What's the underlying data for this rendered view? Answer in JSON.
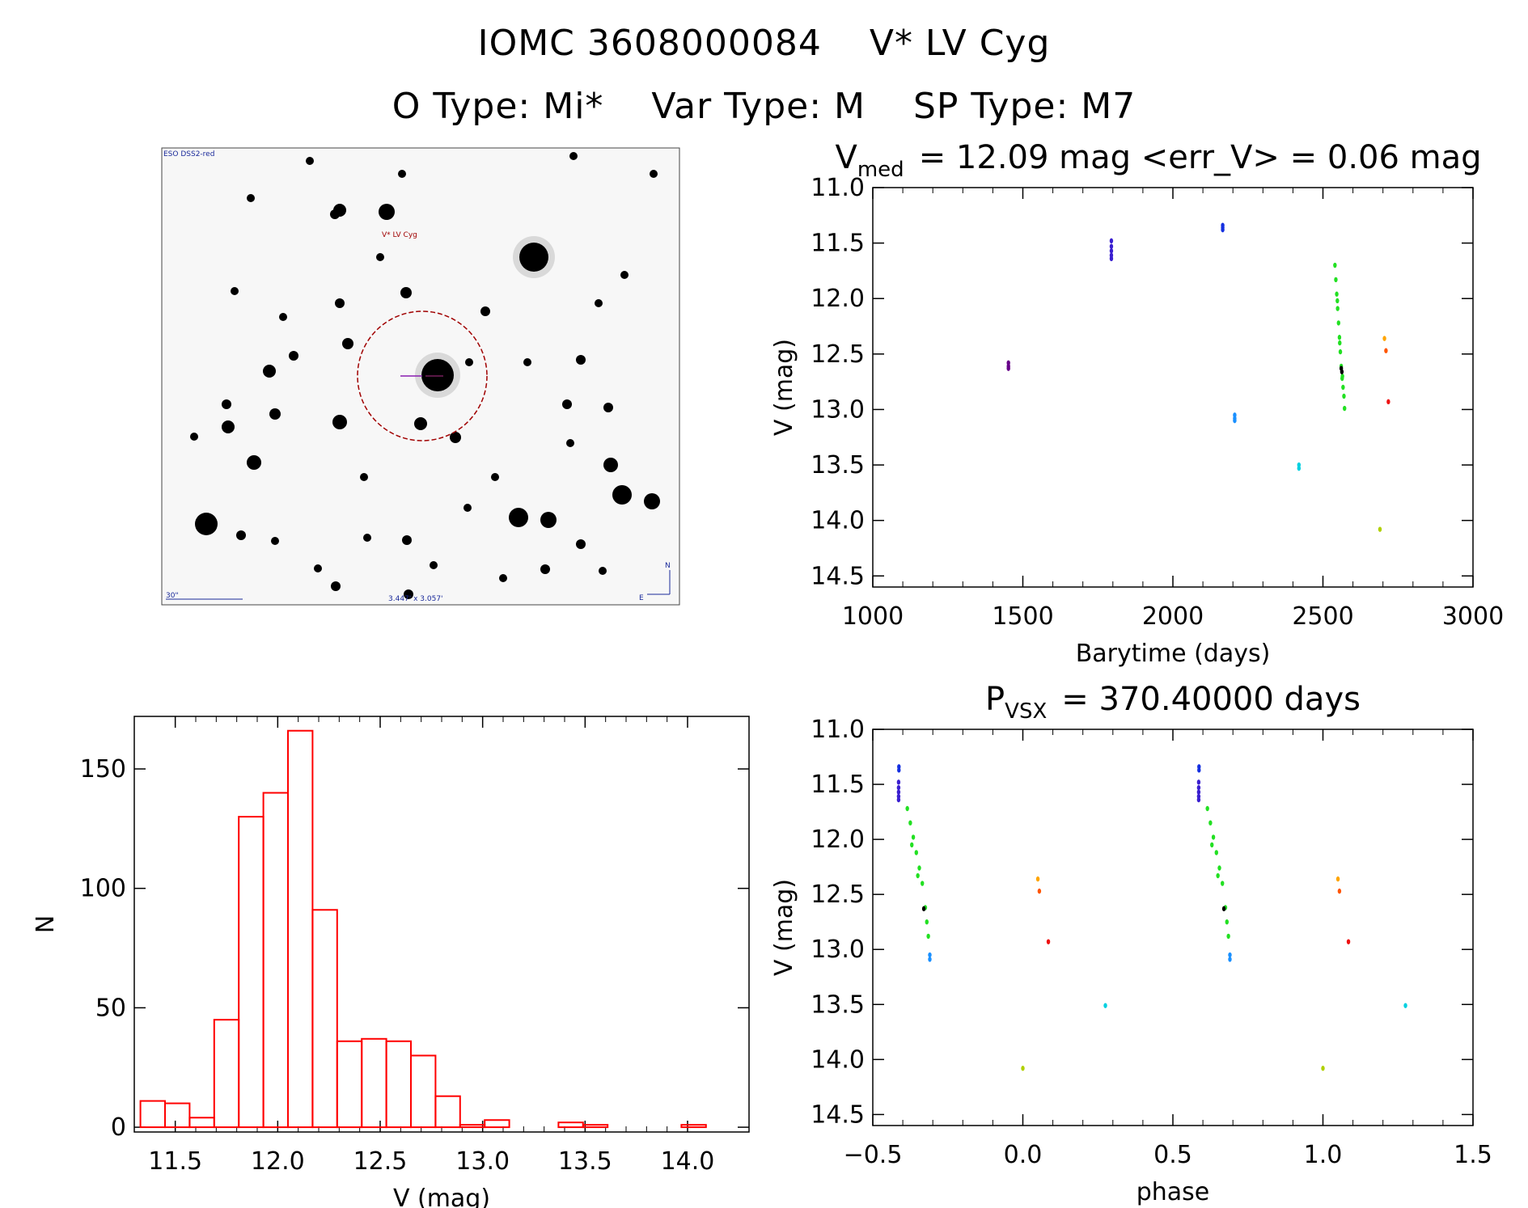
{
  "header": {
    "object_id": "IOMC 3608000084",
    "object_name": "V* LV Cyg",
    "o_type": "O Type: Mi*",
    "var_type": "Var Type: M",
    "sp_type": "SP Type: M7"
  },
  "finder_chart": {
    "survey_label": "ESO DSS2-red",
    "target_label": "V* LV Cyg",
    "scale_label": "30\"",
    "fov_label": "3.447' x 3.057'",
    "north_label": "N",
    "east_label": "E"
  },
  "colors": {
    "histogram": "#ff0000",
    "circle": "#a00000"
  },
  "chart_data": [
    {
      "id": "lightcurve",
      "type": "scatter",
      "title_main": "V",
      "title_sub": "med",
      "title_rest": "= 12.09 mag <err_V> = 0.06 mag",
      "xlabel": "Barytime (days)",
      "ylabel": "V (mag)",
      "xlim": [
        1000,
        3000
      ],
      "ylim": [
        14.6,
        11.0
      ],
      "xticks": [
        1000,
        1500,
        2000,
        2500,
        3000
      ],
      "xtick_labels": [
        "1000",
        "1500",
        "2000",
        "2500",
        "3000"
      ],
      "yticks": [
        11.0,
        11.5,
        12.0,
        12.5,
        13.0,
        13.5,
        14.0,
        14.5
      ],
      "ytick_labels": [
        "11.0",
        "11.5",
        "12.0",
        "12.5",
        "13.0",
        "13.5",
        "14.0",
        "14.5"
      ],
      "groups": [
        {
          "name": "s1",
          "color": "#660088",
          "x": [
            1452,
            1452,
            1452
          ],
          "y": [
            12.58,
            12.61,
            12.63
          ]
        },
        {
          "name": "s2",
          "color": "#3a1fd0",
          "x": [
            1795,
            1795,
            1795,
            1795,
            1795
          ],
          "y": [
            11.48,
            11.53,
            11.57,
            11.61,
            11.64
          ]
        },
        {
          "name": "s3",
          "color": "#1530e0",
          "x": [
            2166,
            2166,
            2166
          ],
          "y": [
            11.34,
            11.36,
            11.38
          ]
        },
        {
          "name": "s4",
          "color": "#1a90ff",
          "x": [
            2206,
            2206,
            2206
          ],
          "y": [
            13.05,
            13.08,
            13.1
          ]
        },
        {
          "name": "s5",
          "color": "#00d0e0",
          "x": [
            2420,
            2420
          ],
          "y": [
            13.5,
            13.53
          ]
        },
        {
          "name": "s6_green",
          "color": "#22e022",
          "x": [
            2540,
            2543,
            2546,
            2549,
            2552,
            2555,
            2558,
            2561,
            2564,
            2567,
            2570,
            2572,
            2548,
            2556,
            2565
          ],
          "y": [
            11.7,
            11.83,
            11.96,
            12.09,
            12.22,
            12.35,
            12.48,
            12.61,
            12.72,
            12.8,
            12.88,
            12.99,
            12.02,
            12.4,
            12.7
          ]
        },
        {
          "name": "s6_black",
          "color": "#000000",
          "x": [
            2561,
            2563
          ],
          "y": [
            12.63,
            12.66
          ]
        },
        {
          "name": "s7",
          "color": "#ffa500",
          "x": [
            2705
          ],
          "y": [
            12.36
          ]
        },
        {
          "name": "s8",
          "color": "#ff5500",
          "x": [
            2710
          ],
          "y": [
            12.47
          ]
        },
        {
          "name": "s9",
          "color": "#ee1111",
          "x": [
            2718
          ],
          "y": [
            12.93
          ]
        },
        {
          "name": "s10",
          "color": "#b0d000",
          "x": [
            2690
          ],
          "y": [
            14.08
          ]
        }
      ]
    },
    {
      "id": "phase",
      "type": "scatter",
      "title_main": "P",
      "title_sub": "VSX",
      "title_rest": "= 370.40000 days",
      "xlabel": "phase",
      "ylabel": "V (mag)",
      "xlim": [
        -0.5,
        1.5
      ],
      "ylim": [
        14.6,
        11.0
      ],
      "xticks": [
        -0.5,
        0.0,
        0.5,
        1.0,
        1.5
      ],
      "xtick_labels": [
        "−0.5",
        "0.0",
        "0.5",
        "1.0",
        "1.5"
      ],
      "yticks": [
        11.0,
        11.5,
        12.0,
        12.5,
        13.0,
        13.5,
        14.0,
        14.5
      ],
      "ytick_labels": [
        "11.0",
        "11.5",
        "12.0",
        "12.5",
        "13.0",
        "13.5",
        "14.0",
        "14.5"
      ],
      "groups": [
        {
          "name": "s2",
          "color": "#3a1fd0",
          "x": [
            -0.414,
            -0.414,
            -0.414,
            -0.414,
            -0.414,
            0.586,
            0.586,
            0.586,
            0.586,
            0.586
          ],
          "y": [
            11.48,
            11.53,
            11.57,
            11.61,
            11.64,
            11.48,
            11.53,
            11.57,
            11.61,
            11.64
          ]
        },
        {
          "name": "s3",
          "color": "#1530e0",
          "x": [
            -0.413,
            -0.413,
            0.587,
            0.587
          ],
          "y": [
            11.34,
            11.37,
            11.34,
            11.37
          ]
        },
        {
          "name": "s4",
          "color": "#1a90ff",
          "x": [
            -0.31,
            -0.31,
            0.69,
            0.69
          ],
          "y": [
            13.05,
            13.09,
            13.05,
            13.09
          ]
        },
        {
          "name": "s6_green",
          "color": "#22e022",
          "x": [
            -0.385,
            -0.375,
            -0.365,
            -0.355,
            -0.345,
            -0.335,
            -0.325,
            -0.32,
            -0.315,
            0.615,
            0.625,
            0.635,
            0.645,
            0.655,
            0.665,
            0.675,
            0.68,
            0.685,
            -0.37,
            -0.35,
            0.63,
            0.65
          ],
          "y": [
            11.72,
            11.85,
            11.98,
            12.12,
            12.26,
            12.4,
            12.62,
            12.75,
            12.88,
            11.72,
            11.85,
            11.98,
            12.12,
            12.26,
            12.4,
            12.62,
            12.75,
            12.88,
            12.05,
            12.33,
            12.05,
            12.33
          ]
        },
        {
          "name": "s6_black",
          "color": "#000000",
          "x": [
            -0.33,
            0.67
          ],
          "y": [
            12.63,
            12.63
          ]
        },
        {
          "name": "s7",
          "color": "#ffa500",
          "x": [
            0.05,
            1.05
          ],
          "y": [
            12.36,
            12.36
          ]
        },
        {
          "name": "s8",
          "color": "#ff5500",
          "x": [
            0.055,
            1.055
          ],
          "y": [
            12.47,
            12.47
          ]
        },
        {
          "name": "s9",
          "color": "#ee1111",
          "x": [
            0.085,
            1.085
          ],
          "y": [
            12.93,
            12.93
          ]
        },
        {
          "name": "s5",
          "color": "#00d0e0",
          "x": [
            0.275,
            1.275
          ],
          "y": [
            13.51,
            13.51
          ]
        },
        {
          "name": "s10",
          "color": "#b0d000",
          "x": [
            0.0,
            1.0
          ],
          "y": [
            14.08,
            14.08
          ]
        }
      ]
    },
    {
      "id": "histogram",
      "type": "bar",
      "title": "",
      "xlabel": "V (mag)",
      "ylabel": "N",
      "xlim": [
        11.3,
        14.3
      ],
      "ylim": [
        -2,
        172
      ],
      "xticks": [
        11.5,
        12.0,
        12.5,
        13.0,
        13.5,
        14.0
      ],
      "xtick_labels": [
        "11.5",
        "12.0",
        "12.5",
        "13.0",
        "13.5",
        "14.0"
      ],
      "yticks": [
        0,
        50,
        100,
        150
      ],
      "ytick_labels": [
        "0",
        "50",
        "100",
        "150"
      ],
      "bin_width": 0.12,
      "bin_starts": [
        11.33,
        11.45,
        11.57,
        11.69,
        11.81,
        11.93,
        12.05,
        12.17,
        12.29,
        12.41,
        12.53,
        12.65,
        12.77,
        12.89,
        13.01,
        13.13,
        13.25,
        13.37,
        13.49,
        13.61,
        13.73,
        13.85,
        13.97,
        14.09
      ],
      "counts": [
        11,
        10,
        4,
        45,
        130,
        140,
        166,
        91,
        36,
        37,
        36,
        30,
        13,
        1,
        3,
        0,
        0,
        2,
        1,
        0,
        0,
        0,
        1,
        0
      ]
    }
  ]
}
